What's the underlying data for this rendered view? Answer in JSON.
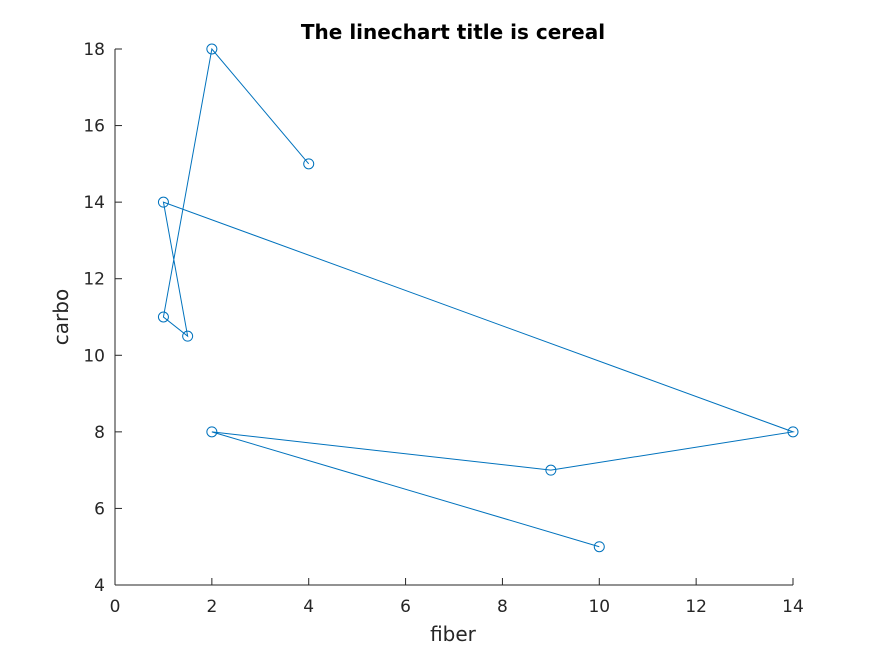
{
  "chart_data": {
    "type": "line",
    "title": "The linechart title is cereal",
    "xlabel": "fiber",
    "ylabel": "carbo",
    "xlim": [
      0,
      14
    ],
    "ylim": [
      4,
      18
    ],
    "xticks": [
      0,
      2,
      4,
      6,
      8,
      10,
      12,
      14
    ],
    "yticks": [
      4,
      6,
      8,
      10,
      12,
      14,
      16,
      18
    ],
    "grid": false,
    "marker": "circle",
    "series": [
      {
        "x": [
          4,
          2,
          1,
          1.5,
          1,
          14,
          9,
          2,
          10
        ],
        "y": [
          15,
          18,
          11,
          10.5,
          14,
          8,
          7,
          8,
          5
        ]
      }
    ],
    "colors": {
      "line": "#0072BD",
      "axis": "#262626"
    }
  }
}
